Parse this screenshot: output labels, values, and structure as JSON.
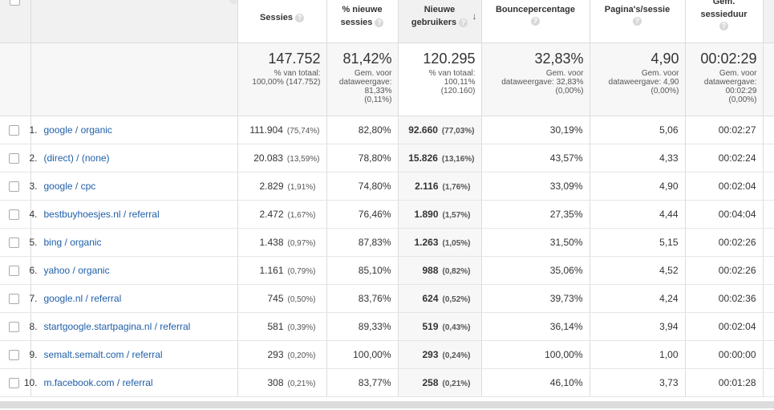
{
  "headers": {
    "sessions": "Sessies",
    "new_sessions": [
      "% nieuwe",
      "sessies"
    ],
    "new_users": [
      "Nieuwe",
      "gebruikers"
    ],
    "bounce": "Bouncepercentage",
    "pages": "Pagina's/sessie",
    "duration": [
      "Gem.",
      "sessieduur"
    ],
    "help_symbol": "?",
    "sort_symbol": "↓"
  },
  "totals": {
    "sessions": {
      "value": "147.752",
      "sub": [
        "% van totaal:",
        "100,00% (147.752)"
      ]
    },
    "new_sessions": {
      "value": "81,42%",
      "sub": [
        "Gem. voor",
        "dataweergave:",
        "81,33%",
        "(0,11%)"
      ]
    },
    "new_users": {
      "value": "120.295",
      "sub": [
        "% van totaal:",
        "100,11%",
        "(120.160)"
      ]
    },
    "bounce": {
      "value": "32,83%",
      "sub": [
        "Gem. voor",
        "dataweergave: 32,83%",
        "(0,00%)"
      ]
    },
    "pages": {
      "value": "4,90",
      "sub": [
        "Gem. voor",
        "dataweergave: 4,90",
        "(0,00%)"
      ]
    },
    "duration": {
      "value": "00:02:29",
      "sub": [
        "Gem. voor",
        "dataweergave:",
        "00:02:29",
        "(0,00%)"
      ]
    }
  },
  "rows": [
    {
      "idx": "1.",
      "src": "google",
      "med": "organic",
      "ses": "111.904",
      "ses_pct": "(75,74%)",
      "newp": "82,80%",
      "nu": "92.660",
      "nu_pct": "(77,03%)",
      "bounce": "30,19%",
      "pps": "5,06",
      "dur": "00:02:27"
    },
    {
      "idx": "2.",
      "src": "(direct)",
      "med": "(none)",
      "ses": "20.083",
      "ses_pct": "(13,59%)",
      "newp": "78,80%",
      "nu": "15.826",
      "nu_pct": "(13,16%)",
      "bounce": "43,57%",
      "pps": "4,33",
      "dur": "00:02:24"
    },
    {
      "idx": "3.",
      "src": "google",
      "med": "cpc",
      "ses": "2.829",
      "ses_pct": "(1,91%)",
      "newp": "74,80%",
      "nu": "2.116",
      "nu_pct": "(1,76%)",
      "bounce": "33,09%",
      "pps": "4,90",
      "dur": "00:02:04"
    },
    {
      "idx": "4.",
      "src": "bestbuyhoesjes.nl",
      "med": "referral",
      "ses": "2.472",
      "ses_pct": "(1,67%)",
      "newp": "76,46%",
      "nu": "1.890",
      "nu_pct": "(1,57%)",
      "bounce": "27,35%",
      "pps": "4,44",
      "dur": "00:04:04"
    },
    {
      "idx": "5.",
      "src": "bing",
      "med": "organic",
      "ses": "1.438",
      "ses_pct": "(0,97%)",
      "newp": "87,83%",
      "nu": "1.263",
      "nu_pct": "(1,05%)",
      "bounce": "31,50%",
      "pps": "5,15",
      "dur": "00:02:26"
    },
    {
      "idx": "6.",
      "src": "yahoo",
      "med": "organic",
      "ses": "1.161",
      "ses_pct": "(0,79%)",
      "newp": "85,10%",
      "nu": "988",
      "nu_pct": "(0,82%)",
      "bounce": "35,06%",
      "pps": "4,52",
      "dur": "00:02:26"
    },
    {
      "idx": "7.",
      "src": "google.nl",
      "med": "referral",
      "ses": "745",
      "ses_pct": "(0,50%)",
      "newp": "83,76%",
      "nu": "624",
      "nu_pct": "(0,52%)",
      "bounce": "39,73%",
      "pps": "4,24",
      "dur": "00:02:36"
    },
    {
      "idx": "8.",
      "src": "startgoogle.startpagina.nl",
      "med": "referral",
      "ses": "581",
      "ses_pct": "(0,39%)",
      "newp": "89,33%",
      "nu": "519",
      "nu_pct": "(0,43%)",
      "bounce": "36,14%",
      "pps": "3,94",
      "dur": "00:02:04"
    },
    {
      "idx": "9.",
      "src": "semalt.semalt.com",
      "med": "referral",
      "ses": "293",
      "ses_pct": "(0,20%)",
      "newp": "100,00%",
      "nu": "293",
      "nu_pct": "(0,24%)",
      "bounce": "100,00%",
      "pps": "1,00",
      "dur": "00:00:00"
    },
    {
      "idx": "10.",
      "src": "m.facebook.com",
      "med": "referral",
      "ses": "308",
      "ses_pct": "(0,21%)",
      "newp": "83,77%",
      "nu": "258",
      "nu_pct": "(0,21%)",
      "bounce": "46,10%",
      "pps": "3,73",
      "dur": "00:01:28"
    }
  ],
  "colors": {
    "link": "#1f5fa8",
    "highlight_bg": "#f7f7f7",
    "border": "#dcdcdc"
  }
}
